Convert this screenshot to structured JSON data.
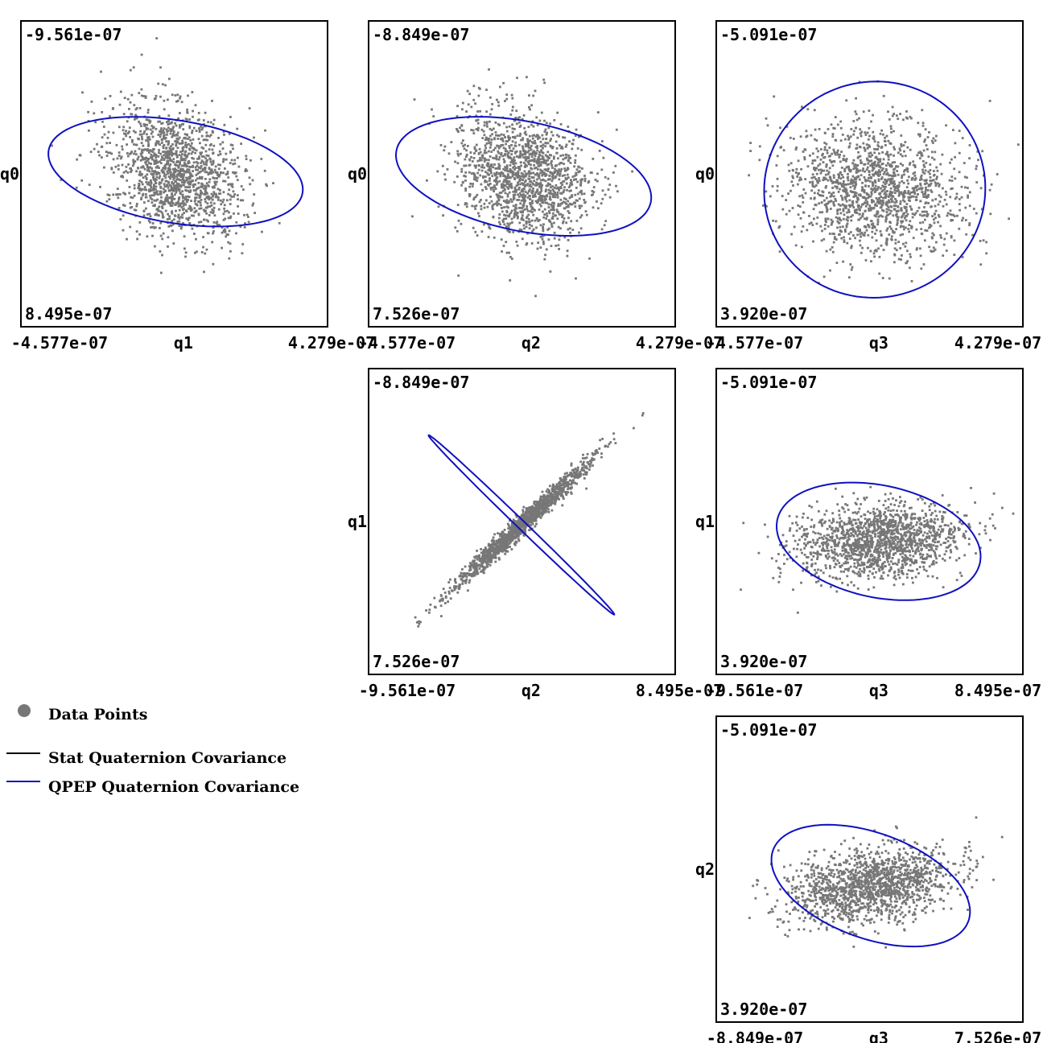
{
  "colors": {
    "points": "#777777",
    "stat": "#000000",
    "qpep": "#1010c0",
    "frame": "#000000"
  },
  "legend": {
    "items": [
      {
        "label": "Data Points",
        "symbol": "dot",
        "color": "#777777"
      },
      {
        "label": "Stat Quaternion Covariance",
        "symbol": "line",
        "color": "#000000"
      },
      {
        "label": "QPEP Quaternion Covariance",
        "symbol": "line",
        "color": "#1010c0"
      }
    ]
  },
  "chart_data": [
    {
      "type": "scatter",
      "panel_row": 0,
      "panel_col": 0,
      "xlabel": "q1",
      "ylabel": "q0",
      "xlim": [
        -4.577e-07,
        4.279e-07
      ],
      "ylim": [
        -9.561e-07,
        8.495e-07
      ],
      "xtick_labels": [
        "-4.577e-07",
        "4.279e-07"
      ],
      "ytick_labels": [
        "-9.561e-07",
        "8.495e-07"
      ],
      "point_cloud": {
        "mean": [
          -1.1e-08,
          -6.6e-08
        ],
        "std": [
          9.5e-08,
          1.95e-07
        ],
        "corr": 0.25,
        "count": 1500
      },
      "qpep_ellipse": {
        "center": [
          -1.1e-08,
          -6.6e-08
        ],
        "semi_axes": [
          1.48e-07,
          7.6e-07
        ],
        "angle_deg": 80.5
      }
    },
    {
      "type": "scatter",
      "panel_row": 0,
      "panel_col": 1,
      "xlabel": "q2",
      "ylabel": "q0",
      "xlim": [
        -4.577e-07,
        4.279e-07
      ],
      "ylim": [
        -8.849e-07,
        7.526e-07
      ],
      "xtick_labels": [
        "-4.577e-07",
        "4.279e-07"
      ],
      "ytick_labels": [
        "-8.849e-07",
        "7.526e-07"
      ],
      "point_cloud": {
        "mean": [
          -1e-08,
          -5.3e-08
        ],
        "std": [
          9.5e-08,
          1.8e-07
        ],
        "corr": 0.25,
        "count": 1500
      },
      "qpep_ellipse": {
        "center": [
          -1e-08,
          -5.3e-08
        ],
        "semi_axes": [
          1.58e-07,
          6.95e-07
        ],
        "angle_deg": 78.5
      }
    },
    {
      "type": "scatter",
      "panel_row": 0,
      "panel_col": 2,
      "xlabel": "q3",
      "ylabel": "q0",
      "xlim": [
        -4.577e-07,
        4.279e-07
      ],
      "ylim": [
        -5.091e-07,
        3.92e-07
      ],
      "xtick_labels": [
        "-4.577e-07",
        "4.279e-07"
      ],
      "ytick_labels": [
        "-5.091e-07",
        "3.920e-07"
      ],
      "point_cloud": {
        "mean": [
          0.0,
          -1.2e-08
        ],
        "std": [
          1.3e-07,
          9.5e-08
        ],
        "corr": 0.1,
        "count": 1500
      },
      "qpep_ellipse": {
        "center": [
          0.0,
          -1.2e-08
        ],
        "semi_axes": [
          3.2e-07,
          3.18e-07
        ],
        "angle_deg": 15
      }
    },
    {
      "type": "scatter",
      "panel_row": 1,
      "panel_col": 1,
      "xlabel": "q2",
      "ylabel": "q1",
      "xlim": [
        -9.561e-07,
        8.495e-07
      ],
      "ylim": [
        -8.849e-07,
        7.526e-07
      ],
      "xtick_labels": [
        "-9.561e-07",
        "8.495e-07"
      ],
      "ytick_labels": [
        "-8.849e-07",
        "7.526e-07"
      ],
      "point_cloud": {
        "mean": [
          -5.6e-08,
          -4.8e-08
        ],
        "std": [
          2e-07,
          1.7e-07
        ],
        "corr": -0.985,
        "count": 1500
      },
      "qpep_ellipse": {
        "center": [
          -5.6e-08,
          -4.8e-08
        ],
        "semi_axes": [
          7.6e-07,
          2.2e-08
        ],
        "angle_deg": -44
      }
    },
    {
      "type": "scatter",
      "panel_row": 1,
      "panel_col": 2,
      "xlabel": "q3",
      "ylabel": "q1",
      "xlim": [
        -9.561e-07,
        8.495e-07
      ],
      "ylim": [
        -5.091e-07,
        3.92e-07
      ],
      "xtick_labels": [
        "-9.561e-07",
        "8.495e-07"
      ],
      "ytick_labels": [
        "-5.091e-07",
        "3.920e-07"
      ],
      "point_cloud": {
        "mean": [
          0.0,
          -0.0
        ],
        "std": [
          2.4e-07,
          5.5e-08
        ],
        "corr": -0.15,
        "count": 1500
      },
      "qpep_ellipse": {
        "center": [
          0.0,
          -0.0
        ],
        "semi_axes": [
          6.1e-07,
          1.65e-07
        ],
        "angle_deg": -12
      }
    },
    {
      "type": "scatter",
      "panel_row": 2,
      "panel_col": 2,
      "xlabel": "q3",
      "ylabel": "q2",
      "xlim": [
        -8.849e-07,
        7.526e-07
      ],
      "ylim": [
        -5.091e-07,
        3.92e-07
      ],
      "xtick_labels": [
        "-8.849e-07",
        "7.526e-07"
      ],
      "ytick_labels": [
        "-5.091e-07",
        "3.920e-07"
      ],
      "point_cloud": {
        "mean": [
          -6e-08,
          -1e-08
        ],
        "std": [
          2.2e-07,
          5.5e-08
        ],
        "corr": -0.3,
        "count": 1500
      },
      "qpep_ellipse": {
        "center": [
          -6e-08,
          -1e-08
        ],
        "semi_axes": [
          5.55e-07,
          1.55e-07
        ],
        "angle_deg": -20
      }
    }
  ]
}
